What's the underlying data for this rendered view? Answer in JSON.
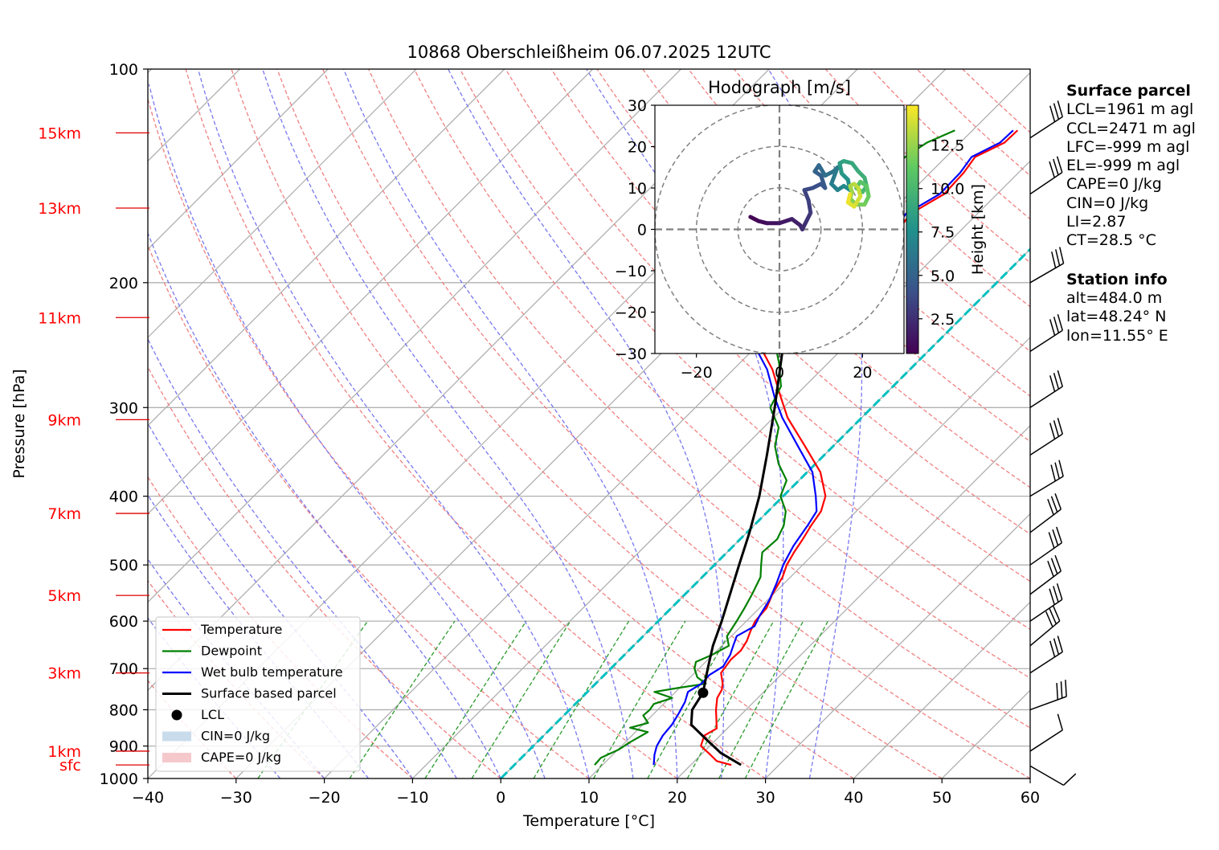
{
  "chart_data": {
    "type": "skew-t log-p sounding with hodograph inset",
    "title": "10868 Oberschleißheim 06.07.2025 12UTC",
    "xlabel": "Temperature [°C]",
    "ylabel": "Pressure [hPa]",
    "xlim": [
      -40,
      60
    ],
    "ylim_hpa": [
      1000,
      100
    ],
    "y_scale": "log",
    "x_ticks": [
      "−40",
      "−30",
      "−20",
      "−10",
      "0",
      "10",
      "20",
      "30",
      "40",
      "50",
      "60"
    ],
    "y_ticks": [
      "100",
      "200",
      "300",
      "400",
      "500",
      "600",
      "700",
      "800",
      "900",
      "1000"
    ],
    "height_labels": [
      {
        "label": "15km",
        "p": 123
      },
      {
        "label": "13km",
        "p": 157
      },
      {
        "label": "11km",
        "p": 224
      },
      {
        "label": "9km",
        "p": 312
      },
      {
        "label": "7km",
        "p": 423
      },
      {
        "label": "5km",
        "p": 552
      },
      {
        "label": "3km",
        "p": 710
      },
      {
        "label": "1km",
        "p": 915
      },
      {
        "label": "sfc",
        "p": 957
      }
    ],
    "grid": true,
    "legend_position": "lower-left",
    "legend": [
      {
        "label": "Temperature",
        "color": "#ff0000",
        "kind": "line"
      },
      {
        "label": "Dewpoint",
        "color": "#008000",
        "kind": "line"
      },
      {
        "label": "Wet bulb temperature",
        "color": "#0000ff",
        "kind": "line"
      },
      {
        "label": "Surface based parcel",
        "color": "#000000",
        "kind": "line"
      },
      {
        "label": "LCL",
        "color": "#000000",
        "kind": "dot"
      },
      {
        "label": "CIN=0 J/kg",
        "color": "#c9dcec",
        "kind": "patch"
      },
      {
        "label": "CAPE=0 J/kg",
        "color": "#f5c9cc",
        "kind": "patch"
      }
    ],
    "series": [
      {
        "name": "Temperature",
        "color": "#ff0000",
        "points": [
          {
            "p": 957,
            "t": 24.6
          },
          {
            "p": 945,
            "t": 22.5
          },
          {
            "p": 925,
            "t": 21.0
          },
          {
            "p": 900,
            "t": 19.0
          },
          {
            "p": 870,
            "t": 18.2
          },
          {
            "p": 850,
            "t": 18.8
          },
          {
            "p": 800,
            "t": 16.6
          },
          {
            "p": 770,
            "t": 15.4
          },
          {
            "p": 750,
            "t": 15.0
          },
          {
            "p": 735,
            "t": 14.4
          },
          {
            "p": 710,
            "t": 13.0
          },
          {
            "p": 680,
            "t": 12.6
          },
          {
            "p": 660,
            "t": 12.7
          },
          {
            "p": 640,
            "t": 12.3
          },
          {
            "p": 620,
            "t": 11.6
          },
          {
            "p": 600,
            "t": 11.0
          },
          {
            "p": 575,
            "t": 10.8
          },
          {
            "p": 550,
            "t": 9.9
          },
          {
            "p": 520,
            "t": 9.1
          },
          {
            "p": 500,
            "t": 8.2
          },
          {
            "p": 480,
            "t": 7.6
          },
          {
            "p": 460,
            "t": 7.1
          },
          {
            "p": 440,
            "t": 6.5
          },
          {
            "p": 420,
            "t": 6.0
          },
          {
            "p": 400,
            "t": 4.8
          },
          {
            "p": 370,
            "t": 1.5
          },
          {
            "p": 340,
            "t": -3.2
          },
          {
            "p": 310,
            "t": -8.4
          },
          {
            "p": 290,
            "t": -11.5
          },
          {
            "p": 265,
            "t": -15.6
          },
          {
            "p": 245,
            "t": -19.8
          },
          {
            "p": 232,
            "t": -22.5
          },
          {
            "p": 220,
            "t": -24.8
          },
          {
            "p": 212,
            "t": -25.0
          },
          {
            "p": 205,
            "t": -24.0
          },
          {
            "p": 195,
            "t": -23.0
          },
          {
            "p": 185,
            "t": -21.0
          },
          {
            "p": 175,
            "t": -18.8
          },
          {
            "p": 167,
            "t": -17.2
          },
          {
            "p": 160,
            "t": -17.6
          },
          {
            "p": 150,
            "t": -16.0
          },
          {
            "p": 140,
            "t": -16.2
          },
          {
            "p": 133,
            "t": -16.7
          },
          {
            "p": 127,
            "t": -15.0
          },
          {
            "p": 122,
            "t": -14.9
          }
        ]
      },
      {
        "name": "Dewpoint",
        "color": "#008000",
        "points": [
          {
            "p": 957,
            "t": 9.1
          },
          {
            "p": 935,
            "t": 9.0
          },
          {
            "p": 910,
            "t": 10.1
          },
          {
            "p": 890,
            "t": 10.5
          },
          {
            "p": 860,
            "t": 11.4
          },
          {
            "p": 848,
            "t": 8.9
          },
          {
            "p": 835,
            "t": 10.4
          },
          {
            "p": 815,
            "t": 9.0
          },
          {
            "p": 800,
            "t": 9.1
          },
          {
            "p": 785,
            "t": 8.9
          },
          {
            "p": 770,
            "t": 10.3
          },
          {
            "p": 755,
            "t": 7.6
          },
          {
            "p": 745,
            "t": 9.9
          },
          {
            "p": 735,
            "t": 12.5
          },
          {
            "p": 720,
            "t": 10.8
          },
          {
            "p": 700,
            "t": 9.5
          },
          {
            "p": 685,
            "t": 8.9
          },
          {
            "p": 670,
            "t": 9.9
          },
          {
            "p": 650,
            "t": 10.8
          },
          {
            "p": 630,
            "t": 9.5
          },
          {
            "p": 600,
            "t": 8.9
          },
          {
            "p": 575,
            "t": 8.3
          },
          {
            "p": 550,
            "t": 7.6
          },
          {
            "p": 520,
            "t": 6.6
          },
          {
            "p": 500,
            "t": 5.3
          },
          {
            "p": 480,
            "t": 4.0
          },
          {
            "p": 460,
            "t": 4.2
          },
          {
            "p": 440,
            "t": 3.4
          },
          {
            "p": 420,
            "t": 2.0
          },
          {
            "p": 400,
            "t": -0.3
          },
          {
            "p": 380,
            "t": -1.4
          },
          {
            "p": 360,
            "t": -4.2
          },
          {
            "p": 340,
            "t": -6.6
          },
          {
            "p": 320,
            "t": -8.3
          },
          {
            "p": 300,
            "t": -11.5
          },
          {
            "p": 280,
            "t": -12.7
          },
          {
            "p": 260,
            "t": -15.5
          },
          {
            "p": 245,
            "t": -18.0
          },
          {
            "p": 235,
            "t": -20.0
          },
          {
            "p": 225,
            "t": -21.6
          },
          {
            "p": 215,
            "t": -24.2
          },
          {
            "p": 208,
            "t": -26.0
          },
          {
            "p": 204,
            "t": -27.5
          },
          {
            "p": 200,
            "t": -26.2
          },
          {
            "p": 193,
            "t": -24.5
          },
          {
            "p": 184,
            "t": -25.5
          },
          {
            "p": 174,
            "t": -26.6
          },
          {
            "p": 160,
            "t": -26.9
          },
          {
            "p": 152,
            "t": -26.3
          },
          {
            "p": 143,
            "t": -26.0
          },
          {
            "p": 136,
            "t": -25.0
          },
          {
            "p": 127,
            "t": -23.8
          },
          {
            "p": 122,
            "t": -22.0
          }
        ]
      },
      {
        "name": "Wet bulb temperature",
        "color": "#0000ff",
        "points": [
          {
            "p": 957,
            "t": 15.8
          },
          {
            "p": 925,
            "t": 14.7
          },
          {
            "p": 900,
            "t": 14.0
          },
          {
            "p": 870,
            "t": 13.5
          },
          {
            "p": 840,
            "t": 13.3
          },
          {
            "p": 810,
            "t": 12.8
          },
          {
            "p": 780,
            "t": 12.2
          },
          {
            "p": 755,
            "t": 11.4
          },
          {
            "p": 735,
            "t": 12.0
          },
          {
            "p": 715,
            "t": 11.9
          },
          {
            "p": 695,
            "t": 12.5
          },
          {
            "p": 670,
            "t": 12.0
          },
          {
            "p": 650,
            "t": 11.3
          },
          {
            "p": 630,
            "t": 10.6
          },
          {
            "p": 610,
            "t": 11.5
          },
          {
            "p": 590,
            "t": 10.9
          },
          {
            "p": 560,
            "t": 10.2
          },
          {
            "p": 530,
            "t": 9.1
          },
          {
            "p": 500,
            "t": 7.8
          },
          {
            "p": 470,
            "t": 6.8
          },
          {
            "p": 440,
            "t": 6.1
          },
          {
            "p": 420,
            "t": 5.5
          },
          {
            "p": 400,
            "t": 3.7
          },
          {
            "p": 370,
            "t": 0.6
          },
          {
            "p": 340,
            "t": -4.0
          },
          {
            "p": 310,
            "t": -9.0
          },
          {
            "p": 290,
            "t": -12.2
          },
          {
            "p": 265,
            "t": -16.2
          },
          {
            "p": 245,
            "t": -20.4
          },
          {
            "p": 232,
            "t": -23.0
          },
          {
            "p": 220,
            "t": -25.3
          },
          {
            "p": 212,
            "t": -25.6
          },
          {
            "p": 205,
            "t": -24.6
          },
          {
            "p": 195,
            "t": -23.5
          },
          {
            "p": 185,
            "t": -21.5
          },
          {
            "p": 175,
            "t": -19.3
          },
          {
            "p": 167,
            "t": -17.7
          },
          {
            "p": 160,
            "t": -18.1
          },
          {
            "p": 150,
            "t": -16.5
          },
          {
            "p": 140,
            "t": -16.6
          },
          {
            "p": 133,
            "t": -17.1
          },
          {
            "p": 127,
            "t": -15.5
          },
          {
            "p": 122,
            "t": -15.4
          }
        ]
      },
      {
        "name": "Surface based parcel",
        "color": "#000000",
        "points": [
          {
            "p": 957,
            "t": 25.7
          },
          {
            "p": 920,
            "t": 22.0
          },
          {
            "p": 880,
            "t": 18.8
          },
          {
            "p": 840,
            "t": 15.5
          },
          {
            "p": 800,
            "t": 13.9
          },
          {
            "p": 757,
            "t": 13.2
          },
          {
            "p": 700,
            "t": 11.0
          },
          {
            "p": 650,
            "t": 9.0
          },
          {
            "p": 600,
            "t": 7.2
          },
          {
            "p": 550,
            "t": 5.1
          },
          {
            "p": 500,
            "t": 2.8
          },
          {
            "p": 450,
            "t": 0.3
          },
          {
            "p": 400,
            "t": -2.7
          },
          {
            "p": 350,
            "t": -6.5
          },
          {
            "p": 300,
            "t": -11.0
          },
          {
            "p": 250,
            "t": -16.5
          },
          {
            "p": 200,
            "t": -22.0
          },
          {
            "p": 175,
            "t": -25.0
          },
          {
            "p": 150,
            "t": -28.0
          },
          {
            "p": 135,
            "t": -30.5
          },
          {
            "p": 122,
            "t": -33.3
          }
        ]
      }
    ],
    "lcl": {
      "p": 757,
      "t": 13.2
    },
    "wind_barbs": [
      {
        "p": 960,
        "dir": 300,
        "kt": 12
      },
      {
        "p": 915,
        "dir": 237,
        "kt": 10
      },
      {
        "p": 800,
        "dir": 250,
        "kt": 30
      },
      {
        "p": 710,
        "dir": 237,
        "kt": 32
      },
      {
        "p": 650,
        "dir": 230,
        "kt": 33
      },
      {
        "p": 600,
        "dir": 236,
        "kt": 33
      },
      {
        "p": 550,
        "dir": 233,
        "kt": 33
      },
      {
        "p": 500,
        "dir": 235,
        "kt": 33
      },
      {
        "p": 450,
        "dir": 233,
        "kt": 33
      },
      {
        "p": 400,
        "dir": 239,
        "kt": 33
      },
      {
        "p": 350,
        "dir": 237,
        "kt": 33
      },
      {
        "p": 300,
        "dir": 237,
        "kt": 33
      },
      {
        "p": 250,
        "dir": 237,
        "kt": 33
      },
      {
        "p": 200,
        "dir": 240,
        "kt": 33
      },
      {
        "p": 150,
        "dir": 236,
        "kt": 33
      },
      {
        "p": 125,
        "dir": 237,
        "kt": 33
      }
    ],
    "hodograph": {
      "title": "Hodograph [m/s]",
      "xlim": [
        -30,
        30
      ],
      "ylim": [
        -30,
        30
      ],
      "x_ticks": [
        "−20",
        "0",
        "20"
      ],
      "y_ticks": [
        "30",
        "20",
        "10",
        "0",
        "−10",
        "−20",
        "−30"
      ],
      "rings": [
        10,
        20,
        30
      ],
      "colorbar_label": "Height [km]",
      "colorbar_ticks": [
        "2.5",
        "5.0",
        "7.5",
        "10.0",
        "12.5"
      ],
      "colorbar_range": [
        0.5,
        14.8
      ],
      "colormap": [
        "#440154",
        "#3b528b",
        "#21918c",
        "#5ec962",
        "#fde725"
      ],
      "points": [
        {
          "u": -7.0,
          "v": 3.0,
          "h": 0.5
        },
        {
          "u": -5.0,
          "v": 2.0,
          "h": 0.8
        },
        {
          "u": -3.0,
          "v": 1.5,
          "h": 1.1
        },
        {
          "u": 0.0,
          "v": 1.5,
          "h": 1.4
        },
        {
          "u": 3.0,
          "v": 2.5,
          "h": 1.7
        },
        {
          "u": 5.0,
          "v": 1.0,
          "h": 2.0
        },
        {
          "u": 5.5,
          "v": 0.0,
          "h": 2.3
        },
        {
          "u": 6.5,
          "v": 2.0,
          "h": 2.6
        },
        {
          "u": 7.5,
          "v": 4.0,
          "h": 2.9
        },
        {
          "u": 7.0,
          "v": 7.0,
          "h": 3.2
        },
        {
          "u": 6.0,
          "v": 9.5,
          "h": 3.5
        },
        {
          "u": 8.0,
          "v": 10.0,
          "h": 3.8
        },
        {
          "u": 10.0,
          "v": 11.0,
          "h": 4.1
        },
        {
          "u": 11.0,
          "v": 10.0,
          "h": 4.4
        },
        {
          "u": 10.0,
          "v": 13.0,
          "h": 4.7
        },
        {
          "u": 8.5,
          "v": 14.0,
          "h": 5.0
        },
        {
          "u": 9.5,
          "v": 15.5,
          "h": 5.3
        },
        {
          "u": 11.0,
          "v": 13.0,
          "h": 5.6
        },
        {
          "u": 13.0,
          "v": 14.0,
          "h": 5.9
        },
        {
          "u": 14.0,
          "v": 15.0,
          "h": 6.2
        },
        {
          "u": 12.5,
          "v": 11.0,
          "h": 6.5
        },
        {
          "u": 14.0,
          "v": 9.5,
          "h": 6.8
        },
        {
          "u": 15.5,
          "v": 10.5,
          "h": 7.1
        },
        {
          "u": 17.0,
          "v": 9.5,
          "h": 7.4
        },
        {
          "u": 16.5,
          "v": 12.0,
          "h": 7.7
        },
        {
          "u": 15.0,
          "v": 13.5,
          "h": 8.0
        },
        {
          "u": 14.5,
          "v": 16.0,
          "h": 8.3
        },
        {
          "u": 15.5,
          "v": 16.5,
          "h": 8.6
        },
        {
          "u": 17.5,
          "v": 16.0,
          "h": 8.9
        },
        {
          "u": 19.0,
          "v": 14.0,
          "h": 9.2
        },
        {
          "u": 20.5,
          "v": 12.5,
          "h": 9.5
        },
        {
          "u": 21.0,
          "v": 10.5,
          "h": 9.8
        },
        {
          "u": 20.0,
          "v": 9.0,
          "h": 10.1
        },
        {
          "u": 18.5,
          "v": 10.0,
          "h": 10.4
        },
        {
          "u": 19.5,
          "v": 11.5,
          "h": 10.7
        },
        {
          "u": 21.0,
          "v": 10.5,
          "h": 11.0
        },
        {
          "u": 21.5,
          "v": 8.0,
          "h": 11.3
        },
        {
          "u": 20.5,
          "v": 6.0,
          "h": 11.6
        },
        {
          "u": 18.5,
          "v": 6.0,
          "h": 11.9
        },
        {
          "u": 17.0,
          "v": 7.5,
          "h": 12.2
        },
        {
          "u": 17.5,
          "v": 9.0,
          "h": 12.5
        },
        {
          "u": 17.0,
          "v": 10.5,
          "h": 12.8
        },
        {
          "u": 18.0,
          "v": 11.0,
          "h": 13.1
        },
        {
          "u": 19.0,
          "v": 10.0,
          "h": 13.4
        },
        {
          "u": 19.5,
          "v": 8.0,
          "h": 13.7
        },
        {
          "u": 18.0,
          "v": 5.5,
          "h": 14.0
        },
        {
          "u": 16.5,
          "v": 6.5,
          "h": 14.3
        },
        {
          "u": 17.0,
          "v": 8.5,
          "h": 14.6
        }
      ]
    }
  },
  "side_panel": {
    "surface_parcel_heading": "Surface parcel",
    "surface_parcel": [
      "LCL=1961 m agl",
      "CCL=2471 m agl",
      "LFC=-999 m agl",
      "EL=-999 m agl",
      "CAPE=0 J/kg",
      "CIN=0 J/kg",
      "LI=2.87",
      "CT=28.5 °C"
    ],
    "station_heading": "Station info",
    "station": [
      "alt=484.0 m",
      "lat=48.24° N",
      "lon=11.55° E"
    ]
  }
}
